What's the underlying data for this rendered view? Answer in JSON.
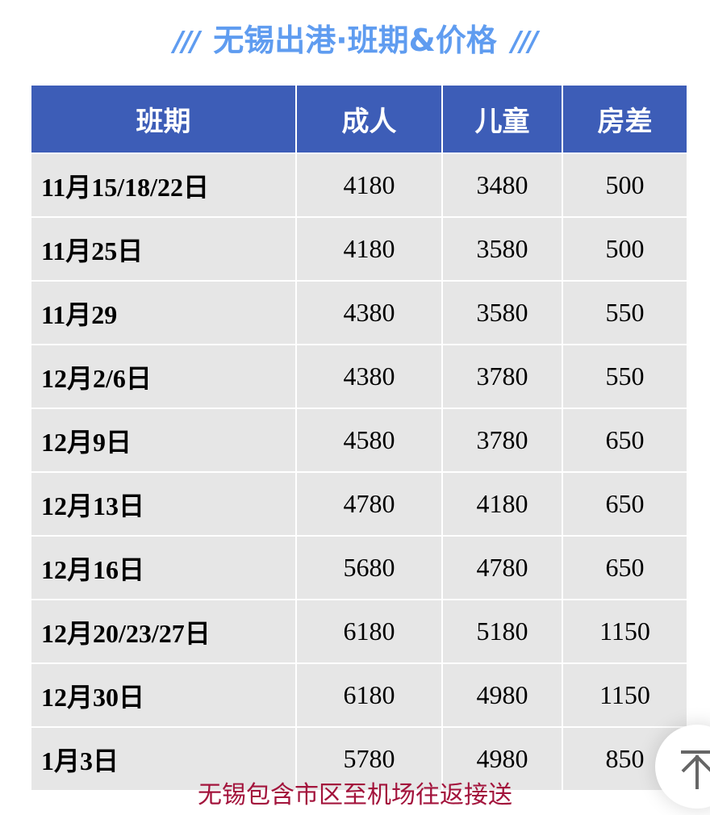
{
  "title": {
    "text": "无锡出港·班期&价格",
    "decor": "///"
  },
  "table": {
    "headers": [
      "班期",
      "成人",
      "儿童",
      "房差"
    ],
    "rows": [
      [
        "11月15/18/22日",
        "4180",
        "3480",
        "500"
      ],
      [
        "11月25日",
        "4180",
        "3580",
        "500"
      ],
      [
        "11月29",
        "4380",
        "3580",
        "550"
      ],
      [
        "12月2/6日",
        "4380",
        "3780",
        "550"
      ],
      [
        "12月9日",
        "4580",
        "3780",
        "650"
      ],
      [
        "12月13日",
        "4780",
        "4180",
        "650"
      ],
      [
        "12月16日",
        "5680",
        "4780",
        "650"
      ],
      [
        "12月20/23/27日",
        "6180",
        "5180",
        "1150"
      ],
      [
        "12月30日",
        "6180",
        "4980",
        "1150"
      ],
      [
        "1月3日",
        "5780",
        "4980",
        "850"
      ]
    ]
  },
  "footer": "无锡包含市区至机场往返接送",
  "back_to_top_icon": "arrow-up-to-top-icon"
}
